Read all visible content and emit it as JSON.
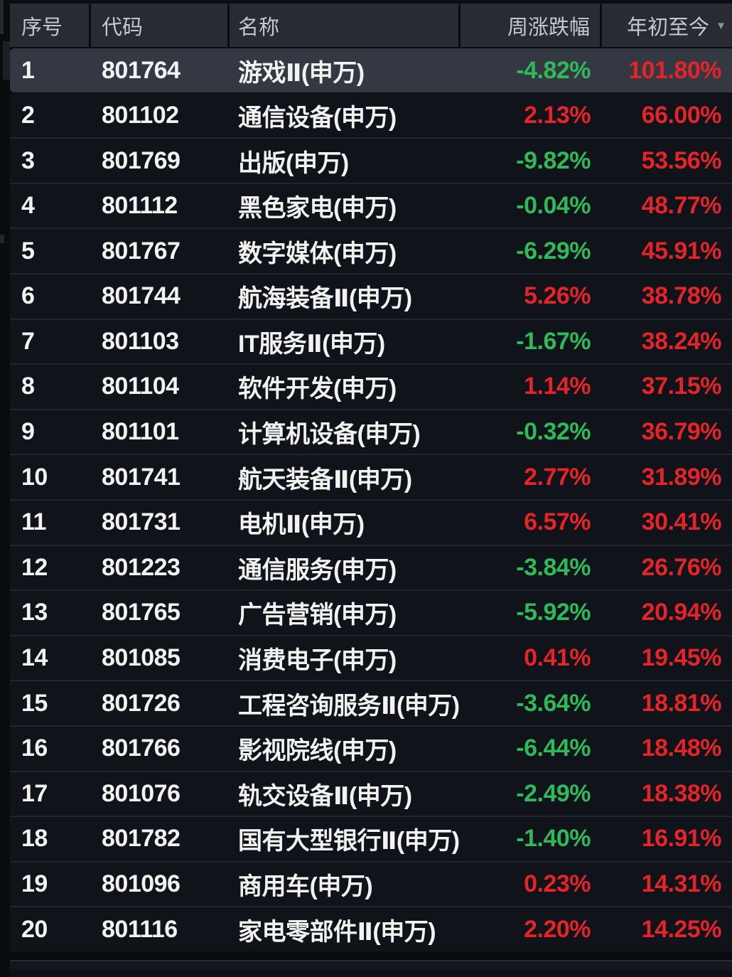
{
  "table": {
    "header": {
      "columns": [
        {
          "label": "序号"
        },
        {
          "label": "代码"
        },
        {
          "label": "名称"
        },
        {
          "label": "周涨跌幅"
        },
        {
          "label": "年初至今"
        }
      ],
      "sort_icon": "▼",
      "sorted_by": "年初至今",
      "sort_direction": "desc"
    },
    "rows": [
      {
        "index": "1",
        "code": "801764",
        "name": "游戏Ⅱ(申万)",
        "week": "-4.82%",
        "week_dir": "down",
        "ytd": "101.80%",
        "ytd_dir": "up",
        "selected": true
      },
      {
        "index": "2",
        "code": "801102",
        "name": "通信设备(申万)",
        "week": "2.13%",
        "week_dir": "up",
        "ytd": "66.00%",
        "ytd_dir": "up",
        "selected": false
      },
      {
        "index": "3",
        "code": "801769",
        "name": "出版(申万)",
        "week": "-9.82%",
        "week_dir": "down",
        "ytd": "53.56%",
        "ytd_dir": "up",
        "selected": false
      },
      {
        "index": "4",
        "code": "801112",
        "name": "黑色家电(申万)",
        "week": "-0.04%",
        "week_dir": "down",
        "ytd": "48.77%",
        "ytd_dir": "up",
        "selected": false
      },
      {
        "index": "5",
        "code": "801767",
        "name": "数字媒体(申万)",
        "week": "-6.29%",
        "week_dir": "down",
        "ytd": "45.91%",
        "ytd_dir": "up",
        "selected": false
      },
      {
        "index": "6",
        "code": "801744",
        "name": "航海装备Ⅱ(申万)",
        "week": "5.26%",
        "week_dir": "up",
        "ytd": "38.78%",
        "ytd_dir": "up",
        "selected": false
      },
      {
        "index": "7",
        "code": "801103",
        "name": "IT服务Ⅱ(申万)",
        "week": "-1.67%",
        "week_dir": "down",
        "ytd": "38.24%",
        "ytd_dir": "up",
        "selected": false
      },
      {
        "index": "8",
        "code": "801104",
        "name": "软件开发(申万)",
        "week": "1.14%",
        "week_dir": "up",
        "ytd": "37.15%",
        "ytd_dir": "up",
        "selected": false
      },
      {
        "index": "9",
        "code": "801101",
        "name": "计算机设备(申万)",
        "week": "-0.32%",
        "week_dir": "down",
        "ytd": "36.79%",
        "ytd_dir": "up",
        "selected": false
      },
      {
        "index": "10",
        "code": "801741",
        "name": "航天装备Ⅱ(申万)",
        "week": "2.77%",
        "week_dir": "up",
        "ytd": "31.89%",
        "ytd_dir": "up",
        "selected": false
      },
      {
        "index": "11",
        "code": "801731",
        "name": "电机Ⅱ(申万)",
        "week": "6.57%",
        "week_dir": "up",
        "ytd": "30.41%",
        "ytd_dir": "up",
        "selected": false
      },
      {
        "index": "12",
        "code": "801223",
        "name": "通信服务(申万)",
        "week": "-3.84%",
        "week_dir": "down",
        "ytd": "26.76%",
        "ytd_dir": "up",
        "selected": false
      },
      {
        "index": "13",
        "code": "801765",
        "name": "广告营销(申万)",
        "week": "-5.92%",
        "week_dir": "down",
        "ytd": "20.94%",
        "ytd_dir": "up",
        "selected": false
      },
      {
        "index": "14",
        "code": "801085",
        "name": "消费电子(申万)",
        "week": "0.41%",
        "week_dir": "up",
        "ytd": "19.45%",
        "ytd_dir": "up",
        "selected": false
      },
      {
        "index": "15",
        "code": "801726",
        "name": "工程咨询服务Ⅱ(申万)",
        "week": "-3.64%",
        "week_dir": "down",
        "ytd": "18.81%",
        "ytd_dir": "up",
        "selected": false
      },
      {
        "index": "16",
        "code": "801766",
        "name": "影视院线(申万)",
        "week": "-6.44%",
        "week_dir": "down",
        "ytd": "18.48%",
        "ytd_dir": "up",
        "selected": false
      },
      {
        "index": "17",
        "code": "801076",
        "name": "轨交设备Ⅱ(申万)",
        "week": "-2.49%",
        "week_dir": "down",
        "ytd": "18.38%",
        "ytd_dir": "up",
        "selected": false
      },
      {
        "index": "18",
        "code": "801782",
        "name": "国有大型银行Ⅱ(申万)",
        "week": "-1.40%",
        "week_dir": "down",
        "ytd": "16.91%",
        "ytd_dir": "up",
        "selected": false
      },
      {
        "index": "19",
        "code": "801096",
        "name": "商用车(申万)",
        "week": "0.23%",
        "week_dir": "up",
        "ytd": "14.31%",
        "ytd_dir": "up",
        "selected": false
      },
      {
        "index": "20",
        "code": "801116",
        "name": "家电零部件Ⅱ(申万)",
        "week": "2.20%",
        "week_dir": "up",
        "ytd": "14.25%",
        "ytd_dir": "up",
        "selected": false
      }
    ]
  },
  "colors": {
    "up_red": "#e42427",
    "down_green": "#2eba58",
    "header_bg": "#282b32",
    "row_bg": "#10131a",
    "selected_row_bg": "#343842"
  }
}
